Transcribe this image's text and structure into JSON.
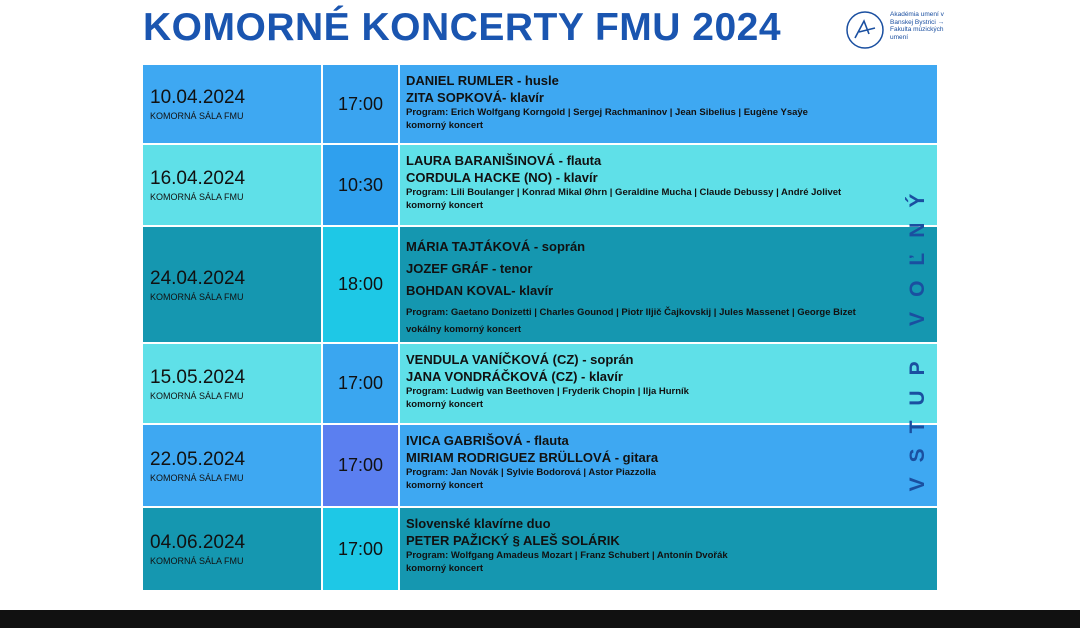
{
  "header": {
    "title": "KOMORNÉ KONCERTY FMU 2024",
    "logo_text": "Akadémia umení v Banskej Bystrici → Fakulta múzických umení"
  },
  "side_text": "VSTUP VOĽNÝ",
  "concerts": [
    {
      "date": "10.04.2024",
      "venue": "KOMORNÁ SÁLA FMU",
      "time": "17:00",
      "performers": [
        "DANIEL RUMLER  - husle",
        "ZITA SOPKOVÁ- klavír"
      ],
      "program": "Program: Erich Wolfgang Korngold | Sergej Rachmaninov | Jean Sibelius | Eugène Ysaÿe",
      "kind": "komorný koncert"
    },
    {
      "date": "16.04.2024",
      "venue": "KOMORNÁ SÁLA FMU",
      "time": "10:30",
      "performers": [
        "LAURA BARANIŠINOVÁ - flauta",
        "CORDULA HACKE (NO) - klavír"
      ],
      "program": "Program: Lili Boulanger | Konrad Mikal Øhrn | Geraldine Mucha | Claude Debussy | André Jolivet",
      "kind": "komorný koncert"
    },
    {
      "date": "24.04.2024",
      "venue": "KOMORNÁ SÁLA FMU",
      "time": "18:00",
      "performers": [
        "MÁRIA TAJTÁKOVÁ - soprán",
        "JOZEF GRÁF - tenor",
        "BOHDAN KOVAL- klavír"
      ],
      "program": "Program: Gaetano Donizetti | Charles Gounod | Piotr Iljič Čajkovskij | Jules Massenet | George Bizet",
      "kind": "vokálny komorný koncert"
    },
    {
      "date": "15.05.2024",
      "venue": "KOMORNÁ SÁLA FMU",
      "time": "17:00",
      "performers": [
        "VENDULA VANÍČKOVÁ (CZ) - soprán",
        "JANA VONDRÁČKOVÁ (CZ) - klavír"
      ],
      "program": "Program:  Ludwig van Beethoven | Fryderik Chopin | Ilja Hurník",
      "kind": "komorný koncert"
    },
    {
      "date": "22.05.2024",
      "venue": "KOMORNÁ SÁLA FMU",
      "time": "17:00",
      "performers": [
        "IVICA GABRIŠOVÁ  - flauta",
        "MIRIAM RODRIGUEZ BRÜLLOVÁ - gitara"
      ],
      "program": "Program: Jan Novák | Sylvie Bodorová | Astor Piazzolla",
      "kind": "komorný koncert"
    },
    {
      "date": "04.06.2024",
      "venue": "KOMORNÁ SÁLA FMU",
      "time": "17:00",
      "performers": [
        "Slovenské klavírne duo",
        "PETER PAŽICKÝ § ALEŠ SOLÁRIK"
      ],
      "program": "Program: Wolfgang Amadeus Mozart | Franz Schubert | Antonín Dvořák",
      "kind": "komorný koncert"
    }
  ]
}
